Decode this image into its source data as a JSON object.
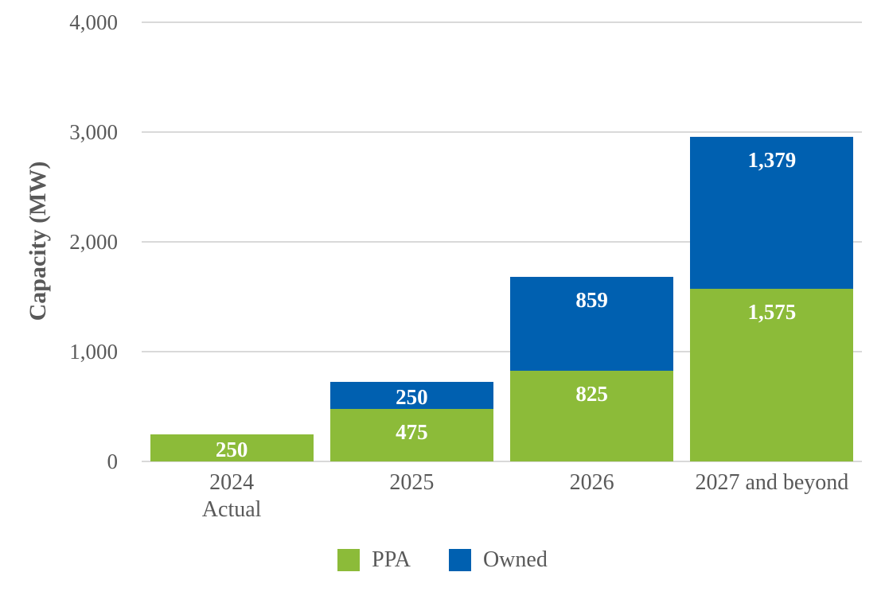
{
  "chart_data": {
    "type": "bar",
    "stacked": true,
    "title": "",
    "xlabel": "",
    "ylabel": "Capacity (MW)",
    "categories": [
      "2024\nActual",
      "2025",
      "2026",
      "2027 and beyond"
    ],
    "series": [
      {
        "name": "PPA",
        "color": "#8CBB39",
        "values": [
          250,
          475,
          825,
          1575
        ]
      },
      {
        "name": "Owned",
        "color": "#0060B0",
        "values": [
          0,
          250,
          859,
          1379
        ]
      }
    ],
    "stack_totals": [
      250,
      725,
      1684,
      2954
    ],
    "ylim": [
      0,
      4000
    ],
    "yticks": [
      0,
      1000,
      2000,
      3000,
      4000
    ],
    "ytick_labels": [
      "0",
      "1,000",
      "2,000",
      "3,000",
      "4,000"
    ],
    "grid": true,
    "legend_position": "bottom",
    "data_label_color": "#FFFFFF",
    "axis_text_color": "#595959",
    "gridline_color": "#D9D9D9"
  }
}
